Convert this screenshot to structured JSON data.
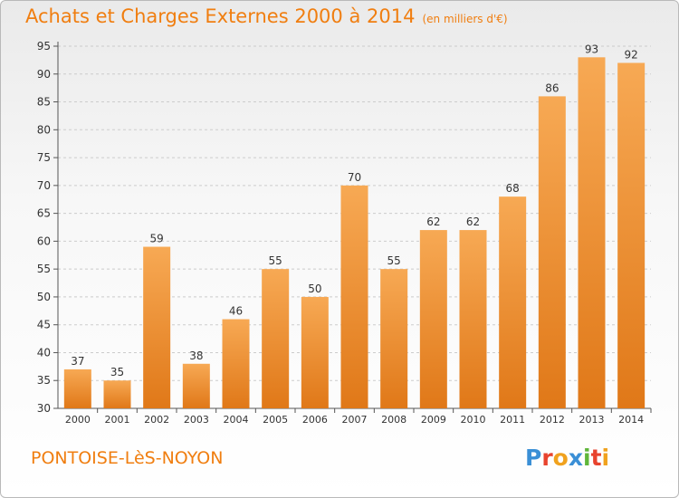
{
  "header": {
    "title": "Achats et Charges Externes 2000 à 2014",
    "unit": "(en milliers d'€)"
  },
  "footer": {
    "place": "PONTOISE-LèS-NOYON",
    "brand": "Proxiti"
  },
  "colors": {
    "accent": "#f07e10",
    "bar_top": "#f7a954",
    "bar_bottom": "#e07818",
    "grid": "#cccccc"
  },
  "chart_data": {
    "type": "bar",
    "title": "Achats et Charges Externes 2000 à 2014",
    "subtitle": "(en milliers d'€)",
    "categories": [
      "2000",
      "2001",
      "2002",
      "2003",
      "2004",
      "2005",
      "2006",
      "2007",
      "2008",
      "2009",
      "2010",
      "2011",
      "2012",
      "2013",
      "2014"
    ],
    "values": [
      37,
      35,
      59,
      38,
      46,
      55,
      50,
      70,
      55,
      62,
      62,
      68,
      86,
      93,
      92
    ],
    "ylim": [
      30,
      95
    ],
    "yticks": [
      30,
      35,
      40,
      45,
      50,
      55,
      60,
      65,
      70,
      75,
      80,
      85,
      90,
      95
    ],
    "grid": "horizontal dashed",
    "data_labels": true,
    "legend": "none"
  }
}
